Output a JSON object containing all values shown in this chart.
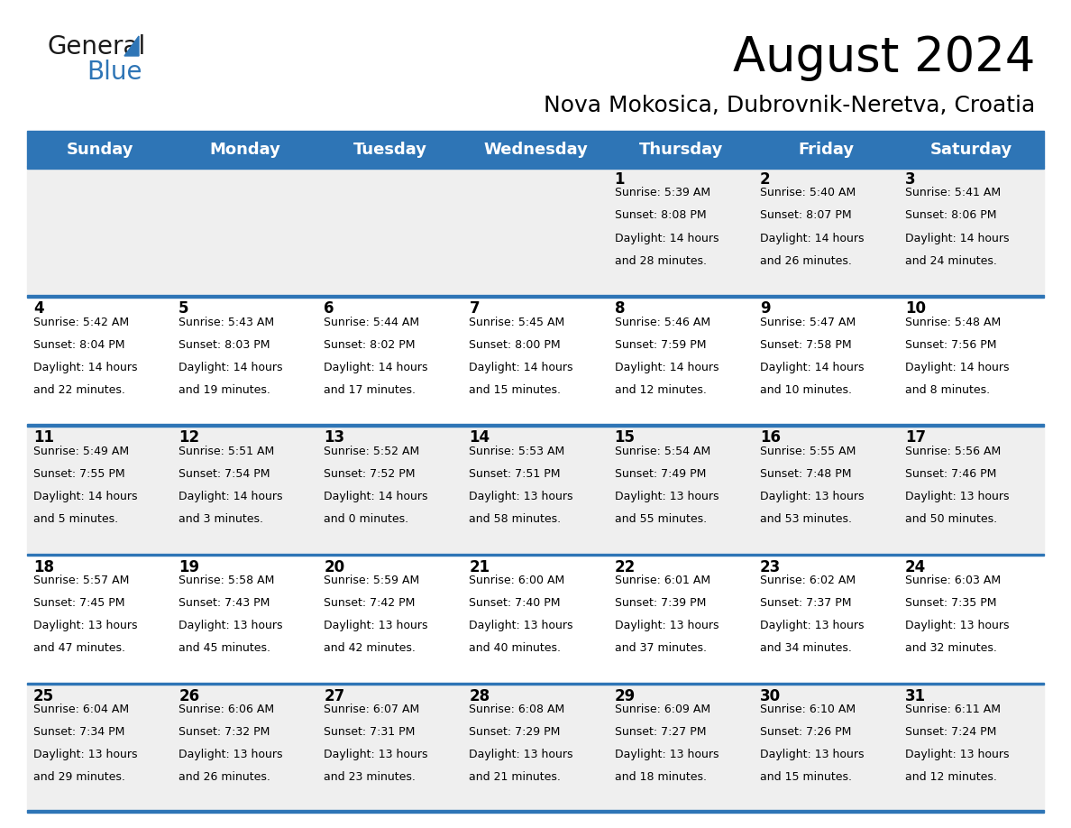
{
  "title": "August 2024",
  "subtitle": "Nova Mokosica, Dubrovnik-Neretva, Croatia",
  "header_color": "#2E75B6",
  "header_text_color": "#FFFFFF",
  "day_names": [
    "Sunday",
    "Monday",
    "Tuesday",
    "Wednesday",
    "Thursday",
    "Friday",
    "Saturday"
  ],
  "background_color": "#FFFFFF",
  "cell_bg_odd": "#EFEFEF",
  "cell_bg_even": "#FFFFFF",
  "separator_color": "#2E75B6",
  "text_color": "#000000",
  "days": [
    {
      "day": 1,
      "col": 4,
      "row": 0,
      "sunrise": "5:39 AM",
      "sunset": "8:08 PM",
      "daylight_h": "14 hours",
      "daylight_m": "and 28 minutes."
    },
    {
      "day": 2,
      "col": 5,
      "row": 0,
      "sunrise": "5:40 AM",
      "sunset": "8:07 PM",
      "daylight_h": "14 hours",
      "daylight_m": "and 26 minutes."
    },
    {
      "day": 3,
      "col": 6,
      "row": 0,
      "sunrise": "5:41 AM",
      "sunset": "8:06 PM",
      "daylight_h": "14 hours",
      "daylight_m": "and 24 minutes."
    },
    {
      "day": 4,
      "col": 0,
      "row": 1,
      "sunrise": "5:42 AM",
      "sunset": "8:04 PM",
      "daylight_h": "14 hours",
      "daylight_m": "and 22 minutes."
    },
    {
      "day": 5,
      "col": 1,
      "row": 1,
      "sunrise": "5:43 AM",
      "sunset": "8:03 PM",
      "daylight_h": "14 hours",
      "daylight_m": "and 19 minutes."
    },
    {
      "day": 6,
      "col": 2,
      "row": 1,
      "sunrise": "5:44 AM",
      "sunset": "8:02 PM",
      "daylight_h": "14 hours",
      "daylight_m": "and 17 minutes."
    },
    {
      "day": 7,
      "col": 3,
      "row": 1,
      "sunrise": "5:45 AM",
      "sunset": "8:00 PM",
      "daylight_h": "14 hours",
      "daylight_m": "and 15 minutes."
    },
    {
      "day": 8,
      "col": 4,
      "row": 1,
      "sunrise": "5:46 AM",
      "sunset": "7:59 PM",
      "daylight_h": "14 hours",
      "daylight_m": "and 12 minutes."
    },
    {
      "day": 9,
      "col": 5,
      "row": 1,
      "sunrise": "5:47 AM",
      "sunset": "7:58 PM",
      "daylight_h": "14 hours",
      "daylight_m": "and 10 minutes."
    },
    {
      "day": 10,
      "col": 6,
      "row": 1,
      "sunrise": "5:48 AM",
      "sunset": "7:56 PM",
      "daylight_h": "14 hours",
      "daylight_m": "and 8 minutes."
    },
    {
      "day": 11,
      "col": 0,
      "row": 2,
      "sunrise": "5:49 AM",
      "sunset": "7:55 PM",
      "daylight_h": "14 hours",
      "daylight_m": "and 5 minutes."
    },
    {
      "day": 12,
      "col": 1,
      "row": 2,
      "sunrise": "5:51 AM",
      "sunset": "7:54 PM",
      "daylight_h": "14 hours",
      "daylight_m": "and 3 minutes."
    },
    {
      "day": 13,
      "col": 2,
      "row": 2,
      "sunrise": "5:52 AM",
      "sunset": "7:52 PM",
      "daylight_h": "14 hours",
      "daylight_m": "and 0 minutes."
    },
    {
      "day": 14,
      "col": 3,
      "row": 2,
      "sunrise": "5:53 AM",
      "sunset": "7:51 PM",
      "daylight_h": "13 hours",
      "daylight_m": "and 58 minutes."
    },
    {
      "day": 15,
      "col": 4,
      "row": 2,
      "sunrise": "5:54 AM",
      "sunset": "7:49 PM",
      "daylight_h": "13 hours",
      "daylight_m": "and 55 minutes."
    },
    {
      "day": 16,
      "col": 5,
      "row": 2,
      "sunrise": "5:55 AM",
      "sunset": "7:48 PM",
      "daylight_h": "13 hours",
      "daylight_m": "and 53 minutes."
    },
    {
      "day": 17,
      "col": 6,
      "row": 2,
      "sunrise": "5:56 AM",
      "sunset": "7:46 PM",
      "daylight_h": "13 hours",
      "daylight_m": "and 50 minutes."
    },
    {
      "day": 18,
      "col": 0,
      "row": 3,
      "sunrise": "5:57 AM",
      "sunset": "7:45 PM",
      "daylight_h": "13 hours",
      "daylight_m": "and 47 minutes."
    },
    {
      "day": 19,
      "col": 1,
      "row": 3,
      "sunrise": "5:58 AM",
      "sunset": "7:43 PM",
      "daylight_h": "13 hours",
      "daylight_m": "and 45 minutes."
    },
    {
      "day": 20,
      "col": 2,
      "row": 3,
      "sunrise": "5:59 AM",
      "sunset": "7:42 PM",
      "daylight_h": "13 hours",
      "daylight_m": "and 42 minutes."
    },
    {
      "day": 21,
      "col": 3,
      "row": 3,
      "sunrise": "6:00 AM",
      "sunset": "7:40 PM",
      "daylight_h": "13 hours",
      "daylight_m": "and 40 minutes."
    },
    {
      "day": 22,
      "col": 4,
      "row": 3,
      "sunrise": "6:01 AM",
      "sunset": "7:39 PM",
      "daylight_h": "13 hours",
      "daylight_m": "and 37 minutes."
    },
    {
      "day": 23,
      "col": 5,
      "row": 3,
      "sunrise": "6:02 AM",
      "sunset": "7:37 PM",
      "daylight_h": "13 hours",
      "daylight_m": "and 34 minutes."
    },
    {
      "day": 24,
      "col": 6,
      "row": 3,
      "sunrise": "6:03 AM",
      "sunset": "7:35 PM",
      "daylight_h": "13 hours",
      "daylight_m": "and 32 minutes."
    },
    {
      "day": 25,
      "col": 0,
      "row": 4,
      "sunrise": "6:04 AM",
      "sunset": "7:34 PM",
      "daylight_h": "13 hours",
      "daylight_m": "and 29 minutes."
    },
    {
      "day": 26,
      "col": 1,
      "row": 4,
      "sunrise": "6:06 AM",
      "sunset": "7:32 PM",
      "daylight_h": "13 hours",
      "daylight_m": "and 26 minutes."
    },
    {
      "day": 27,
      "col": 2,
      "row": 4,
      "sunrise": "6:07 AM",
      "sunset": "7:31 PM",
      "daylight_h": "13 hours",
      "daylight_m": "and 23 minutes."
    },
    {
      "day": 28,
      "col": 3,
      "row": 4,
      "sunrise": "6:08 AM",
      "sunset": "7:29 PM",
      "daylight_h": "13 hours",
      "daylight_m": "and 21 minutes."
    },
    {
      "day": 29,
      "col": 4,
      "row": 4,
      "sunrise": "6:09 AM",
      "sunset": "7:27 PM",
      "daylight_h": "13 hours",
      "daylight_m": "and 18 minutes."
    },
    {
      "day": 30,
      "col": 5,
      "row": 4,
      "sunrise": "6:10 AM",
      "sunset": "7:26 PM",
      "daylight_h": "13 hours",
      "daylight_m": "and 15 minutes."
    },
    {
      "day": 31,
      "col": 6,
      "row": 4,
      "sunrise": "6:11 AM",
      "sunset": "7:24 PM",
      "daylight_h": "13 hours",
      "daylight_m": "and 12 minutes."
    }
  ],
  "num_rows": 5,
  "logo_text1": "General",
  "logo_text2": "Blue",
  "logo_color1": "#1a1a1a",
  "logo_color2": "#2E75B6",
  "title_fontsize": 38,
  "subtitle_fontsize": 18,
  "header_fontsize": 13,
  "day_num_fontsize": 12,
  "cell_text_fontsize": 9
}
